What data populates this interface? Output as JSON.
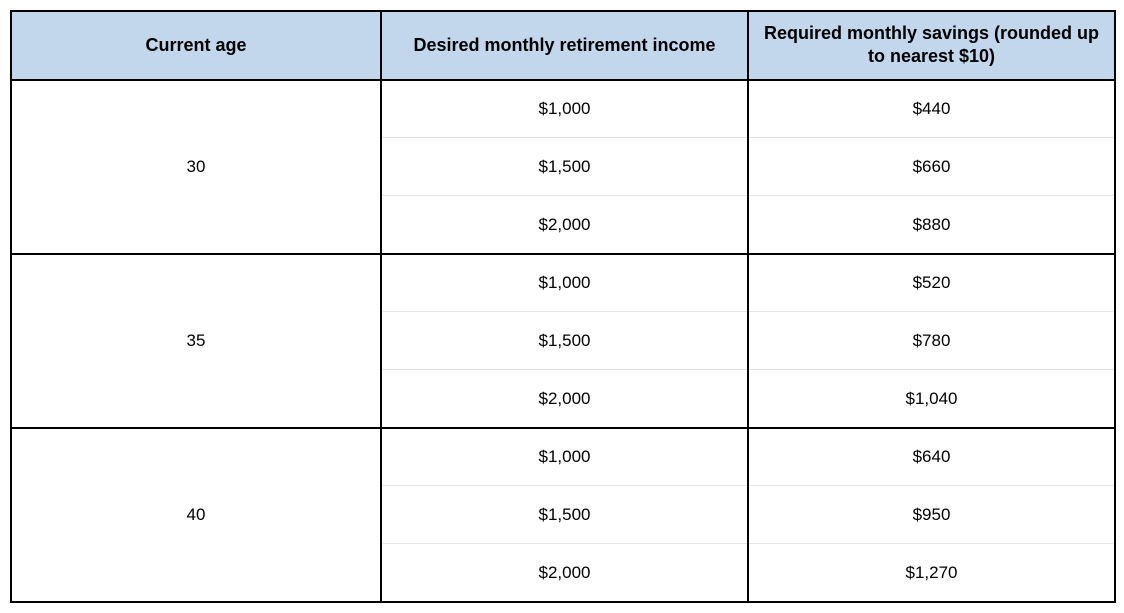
{
  "table": {
    "type": "table",
    "header_background": "#c2d6ec",
    "border_color": "#000000",
    "inner_separator_color": "#e5e5e5",
    "font_family": "Arial",
    "header_fontsize": 18,
    "cell_fontsize": 17,
    "columns": {
      "age": "Current age",
      "income": "Desired monthly retirement income",
      "savings": "Required monthly savings (rounded up to nearest $10)"
    },
    "groups": [
      {
        "age": "30",
        "rows": [
          {
            "income": "$1,000",
            "savings": "$440"
          },
          {
            "income": "$1,500",
            "savings": "$660"
          },
          {
            "income": "$2,000",
            "savings": "$880"
          }
        ]
      },
      {
        "age": "35",
        "rows": [
          {
            "income": "$1,000",
            "savings": "$520"
          },
          {
            "income": "$1,500",
            "savings": "$780"
          },
          {
            "income": "$2,000",
            "savings": "$1,040"
          }
        ]
      },
      {
        "age": "40",
        "rows": [
          {
            "income": "$1,000",
            "savings": "$640"
          },
          {
            "income": "$1,500",
            "savings": "$950"
          },
          {
            "income": "$2,000",
            "savings": "$1,270"
          }
        ]
      }
    ]
  }
}
